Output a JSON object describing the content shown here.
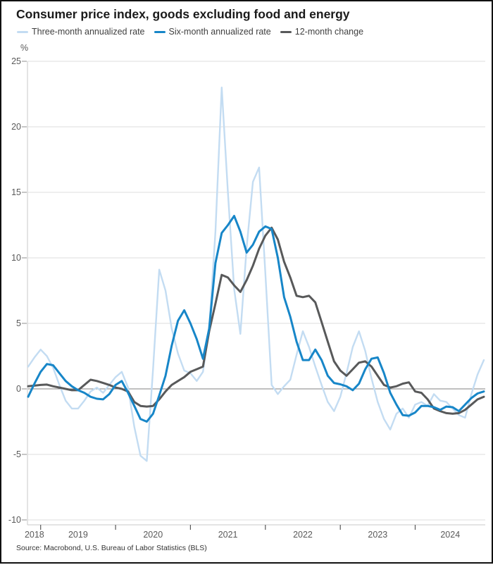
{
  "title": "Consumer price index, goods excluding food and energy",
  "source": "Source: Macrobond, U.S. Bureau of Labor Statistics (BLS)",
  "colors": {
    "three_month": "#c3dcf2",
    "six_month": "#1786c8",
    "twelve_month": "#58595a",
    "gridline": "#dcdcdc",
    "zero_line": "#808080",
    "axis": "#c8c8c8",
    "tick": "#8c8c8c"
  },
  "legend": [
    {
      "label": "Three-month annualized rate",
      "color": "#c3dcf2"
    },
    {
      "label": "Six-month annualized rate",
      "color": "#1786c8"
    },
    {
      "label": "12-month change",
      "color": "#58595a"
    }
  ],
  "y_axis": {
    "unit_label": "%",
    "ticks": [
      25,
      20,
      15,
      10,
      5,
      0,
      -5,
      -10
    ]
  },
  "x_axis": {
    "year_labels": [
      "2018",
      "2019",
      "2020",
      "2021",
      "2022",
      "2023",
      "2024"
    ]
  },
  "chart_data": {
    "type": "line",
    "x_start": "2018-11",
    "x_end": "2024-12",
    "frequency": "monthly",
    "ylim": [
      -10,
      25
    ],
    "grid": true,
    "legend_position": "top",
    "jan_indices": [
      2,
      14,
      26,
      38,
      50,
      62
    ],
    "series": [
      {
        "name": "Three-month annualized rate",
        "color": "#c3dcf2",
        "width": 2.4,
        "values": [
          1.7,
          2.4,
          3.0,
          2.5,
          1.6,
          0.3,
          -0.9,
          -1.5,
          -1.5,
          -0.9,
          -0.2,
          0.1,
          -0.3,
          0.3,
          0.9,
          1.3,
          0.1,
          -2.9,
          -5.1,
          -5.5,
          1.5,
          9.1,
          7.5,
          4.6,
          2.7,
          1.4,
          1.2,
          0.6,
          1.3,
          4.6,
          12.0,
          23.0,
          15.0,
          7.6,
          4.2,
          10.8,
          15.8,
          16.9,
          8.8,
          0.3,
          -0.4,
          0.2,
          0.7,
          2.6,
          4.4,
          3.2,
          1.7,
          0.3,
          -1.0,
          -1.7,
          -0.6,
          1.2,
          3.2,
          4.4,
          2.9,
          0.8,
          -1.0,
          -2.3,
          -3.1,
          -1.9,
          -1.5,
          -2.2,
          -1.2,
          -1.0,
          -1.3,
          -0.4,
          -0.9,
          -1.0,
          -1.5,
          -2.0,
          -2.2,
          -0.4,
          1.1,
          2.2
        ]
      },
      {
        "name": "Six-month annualized rate",
        "color": "#1786c8",
        "width": 3,
        "values": [
          -0.6,
          0.4,
          1.3,
          1.9,
          1.8,
          1.2,
          0.6,
          0.2,
          -0.1,
          -0.3,
          -0.6,
          -0.75,
          -0.8,
          -0.4,
          0.3,
          0.6,
          -0.3,
          -1.3,
          -2.3,
          -2.5,
          -1.9,
          -0.5,
          1.0,
          3.3,
          5.2,
          6.0,
          5.0,
          3.8,
          2.3,
          4.6,
          9.6,
          11.9,
          12.5,
          13.2,
          12.0,
          10.4,
          11.0,
          12.0,
          12.4,
          12.2,
          10.0,
          7.0,
          5.5,
          3.6,
          2.2,
          2.2,
          3.0,
          2.2,
          1.0,
          0.45,
          0.35,
          0.2,
          -0.1,
          0.4,
          1.5,
          2.3,
          2.4,
          1.2,
          -0.3,
          -1.2,
          -2.0,
          -2.05,
          -1.8,
          -1.3,
          -1.3,
          -1.4,
          -1.6,
          -1.35,
          -1.4,
          -1.7,
          -1.2,
          -0.7,
          -0.35,
          -0.2
        ]
      },
      {
        "name": "12-month change",
        "color": "#58595a",
        "width": 3,
        "values": [
          0.2,
          0.25,
          0.3,
          0.33,
          0.2,
          0.1,
          0.0,
          -0.1,
          -0.1,
          0.3,
          0.7,
          0.6,
          0.45,
          0.3,
          0.1,
          0.0,
          -0.2,
          -1.0,
          -1.3,
          -1.35,
          -1.3,
          -0.8,
          -0.2,
          0.3,
          0.6,
          0.9,
          1.3,
          1.5,
          1.7,
          4.4,
          6.5,
          8.7,
          8.5,
          7.9,
          7.4,
          8.3,
          9.4,
          10.7,
          11.7,
          12.3,
          11.4,
          9.7,
          8.5,
          7.1,
          7.0,
          7.1,
          6.6,
          5.1,
          3.6,
          2.1,
          1.4,
          1.0,
          1.5,
          2.0,
          2.1,
          1.7,
          1.0,
          0.3,
          0.1,
          0.2,
          0.4,
          0.5,
          -0.2,
          -0.3,
          -0.8,
          -1.5,
          -1.7,
          -1.85,
          -1.9,
          -1.85,
          -1.6,
          -1.2,
          -0.8,
          -0.6
        ]
      }
    ]
  }
}
